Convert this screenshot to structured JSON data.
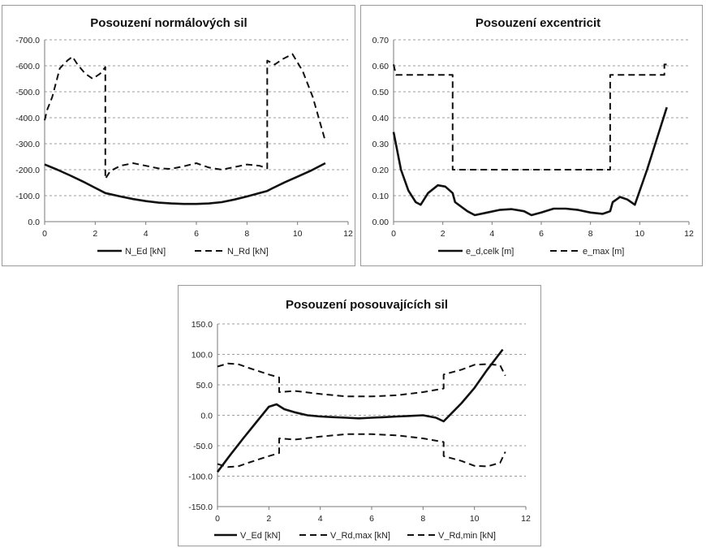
{
  "chart_data": [
    {
      "type": "line",
      "title": "Posouzení normálových sil",
      "xlabel": "",
      "ylabel": "",
      "xlim": [
        0,
        12
      ],
      "ylim": [
        0,
        -700
      ],
      "y_reversed": true,
      "x_ticks": [
        "0",
        "2",
        "4",
        "6",
        "8",
        "10",
        "12"
      ],
      "y_ticks": [
        "0.0",
        "-100.0",
        "-200.0",
        "-300.0",
        "-400.0",
        "-500.0",
        "-600.0",
        "-700.0"
      ],
      "grid": "horizontal-dashed",
      "legend_position": "bottom",
      "series": [
        {
          "name": "N_Ed [kN]",
          "style": "solid",
          "points": [
            [
              0,
              -220
            ],
            [
              0.5,
              -200
            ],
            [
              1,
              -178
            ],
            [
              1.5,
              -155
            ],
            [
              2,
              -130
            ],
            [
              2.4,
              -110
            ],
            [
              3,
              -97
            ],
            [
              3.5,
              -87
            ],
            [
              4,
              -79
            ],
            [
              4.5,
              -73
            ],
            [
              5,
              -70
            ],
            [
              5.5,
              -68
            ],
            [
              6,
              -68
            ],
            [
              6.5,
              -70
            ],
            [
              7,
              -75
            ],
            [
              7.5,
              -85
            ],
            [
              8,
              -97
            ],
            [
              8.5,
              -110
            ],
            [
              8.8,
              -118
            ],
            [
              9,
              -128
            ],
            [
              9.5,
              -152
            ],
            [
              10,
              -173
            ],
            [
              10.5,
              -195
            ],
            [
              11.1,
              -225
            ]
          ]
        },
        {
          "name": "N_Rd [kN]",
          "style": "dashed",
          "points": [
            [
              0,
              -390
            ],
            [
              0.1,
              -430
            ],
            [
              0.3,
              -480
            ],
            [
              0.6,
              -590
            ],
            [
              0.9,
              -620
            ],
            [
              1.1,
              -635
            ],
            [
              1.3,
              -605
            ],
            [
              1.6,
              -570
            ],
            [
              1.9,
              -550
            ],
            [
              2.2,
              -570
            ],
            [
              2.4,
              -595
            ],
            [
              2.4,
              -165
            ],
            [
              2.6,
              -195
            ],
            [
              3,
              -215
            ],
            [
              3.5,
              -225
            ],
            [
              4,
              -215
            ],
            [
              4.5,
              -205
            ],
            [
              5,
              -203
            ],
            [
              5.5,
              -213
            ],
            [
              6,
              -225
            ],
            [
              6.5,
              -208
            ],
            [
              7,
              -200
            ],
            [
              7.5,
              -210
            ],
            [
              8,
              -220
            ],
            [
              8.5,
              -215
            ],
            [
              8.8,
              -205
            ],
            [
              8.8,
              -620
            ],
            [
              9.1,
              -605
            ],
            [
              9.4,
              -625
            ],
            [
              9.8,
              -645
            ],
            [
              10.2,
              -580
            ],
            [
              10.6,
              -480
            ],
            [
              11.1,
              -310
            ]
          ]
        }
      ]
    },
    {
      "type": "line",
      "title": "Posouzení excentricit",
      "xlabel": "",
      "ylabel": "",
      "xlim": [
        0,
        12
      ],
      "ylim": [
        0,
        0.7
      ],
      "x_ticks": [
        "0",
        "2",
        "4",
        "6",
        "8",
        "10",
        "12"
      ],
      "y_ticks": [
        "0.00",
        "0.10",
        "0.20",
        "0.30",
        "0.40",
        "0.50",
        "0.60",
        "0.70"
      ],
      "grid": "horizontal-dashed",
      "legend_position": "bottom",
      "series": [
        {
          "name": "e_d,celk [m]",
          "style": "solid",
          "points": [
            [
              0,
              0.345
            ],
            [
              0.3,
              0.2
            ],
            [
              0.6,
              0.12
            ],
            [
              0.9,
              0.075
            ],
            [
              1.1,
              0.065
            ],
            [
              1.4,
              0.11
            ],
            [
              1.8,
              0.14
            ],
            [
              2.1,
              0.135
            ],
            [
              2.4,
              0.11
            ],
            [
              2.5,
              0.075
            ],
            [
              3,
              0.04
            ],
            [
              3.3,
              0.025
            ],
            [
              3.8,
              0.035
            ],
            [
              4.3,
              0.045
            ],
            [
              4.8,
              0.048
            ],
            [
              5.3,
              0.04
            ],
            [
              5.6,
              0.025
            ],
            [
              6,
              0.035
            ],
            [
              6.5,
              0.05
            ],
            [
              7,
              0.05
            ],
            [
              7.5,
              0.045
            ],
            [
              8,
              0.035
            ],
            [
              8.5,
              0.03
            ],
            [
              8.8,
              0.04
            ],
            [
              8.9,
              0.075
            ],
            [
              9.2,
              0.095
            ],
            [
              9.5,
              0.085
            ],
            [
              9.8,
              0.065
            ],
            [
              10.3,
              0.2
            ],
            [
              10.8,
              0.35
            ],
            [
              11.1,
              0.44
            ]
          ]
        },
        {
          "name": "e_max [m]",
          "style": "dashed",
          "points": [
            [
              0,
              0.605
            ],
            [
              0.1,
              0.565
            ],
            [
              2.4,
              0.565
            ],
            [
              2.4,
              0.2
            ],
            [
              8.8,
              0.2
            ],
            [
              8.8,
              0.565
            ],
            [
              11,
              0.565
            ],
            [
              11,
              0.605
            ],
            [
              11.2,
              0.605
            ]
          ]
        }
      ]
    },
    {
      "type": "line",
      "title": "Posouzení posouvajících sil",
      "xlabel": "",
      "ylabel": "",
      "xlim": [
        0,
        12
      ],
      "ylim": [
        -150,
        150
      ],
      "x_ticks": [
        "0",
        "2",
        "4",
        "6",
        "8",
        "10",
        "12"
      ],
      "y_ticks": [
        "-150.0",
        "-100.0",
        "-50.0",
        "0.0",
        "50.0",
        "100.0",
        "150.0"
      ],
      "grid": "horizontal-dashed",
      "legend_position": "bottom",
      "series": [
        {
          "name": "V_Ed [kN]",
          "style": "solid",
          "points": [
            [
              0,
              -93
            ],
            [
              0.5,
              -65
            ],
            [
              1,
              -38
            ],
            [
              1.5,
              -12
            ],
            [
              2,
              14
            ],
            [
              2.3,
              18
            ],
            [
              2.6,
              10
            ],
            [
              3,
              5
            ],
            [
              3.5,
              0
            ],
            [
              4,
              -2
            ],
            [
              4.5,
              -3
            ],
            [
              5,
              -4
            ],
            [
              5.5,
              -5
            ],
            [
              6,
              -4
            ],
            [
              6.5,
              -3
            ],
            [
              7,
              -2
            ],
            [
              7.5,
              -1
            ],
            [
              8,
              0
            ],
            [
              8.5,
              -4
            ],
            [
              8.8,
              -10
            ],
            [
              9.5,
              20
            ],
            [
              10,
              45
            ],
            [
              10.5,
              75
            ],
            [
              11.1,
              108
            ]
          ]
        },
        {
          "name": "V_Rd,max [kN]",
          "style": "dashed",
          "points": [
            [
              0,
              80
            ],
            [
              0.4,
              85
            ],
            [
              0.8,
              84
            ],
            [
              1.2,
              78
            ],
            [
              2,
              67
            ],
            [
              2.4,
              62
            ],
            [
              2.4,
              38
            ],
            [
              3,
              40
            ],
            [
              4,
              35
            ],
            [
              5,
              31
            ],
            [
              6,
              31
            ],
            [
              7,
              33
            ],
            [
              8,
              38
            ],
            [
              8.8,
              44
            ],
            [
              8.8,
              67
            ],
            [
              9.5,
              75
            ],
            [
              10,
              83
            ],
            [
              10.5,
              84
            ],
            [
              11,
              82
            ],
            [
              11.2,
              65
            ]
          ]
        },
        {
          "name": "V_Rd,min [kN]",
          "style": "dashed",
          "points": [
            [
              0,
              -80
            ],
            [
              0.4,
              -85
            ],
            [
              0.8,
              -84
            ],
            [
              1.2,
              -78
            ],
            [
              2,
              -67
            ],
            [
              2.4,
              -62
            ],
            [
              2.4,
              -38
            ],
            [
              3,
              -40
            ],
            [
              4,
              -35
            ],
            [
              5,
              -31
            ],
            [
              6,
              -31
            ],
            [
              7,
              -33
            ],
            [
              8,
              -38
            ],
            [
              8.8,
              -44
            ],
            [
              8.8,
              -67
            ],
            [
              9.5,
              -75
            ],
            [
              10,
              -83
            ],
            [
              10.5,
              -84
            ],
            [
              11,
              -78
            ],
            [
              11.2,
              -60
            ]
          ]
        }
      ]
    }
  ]
}
